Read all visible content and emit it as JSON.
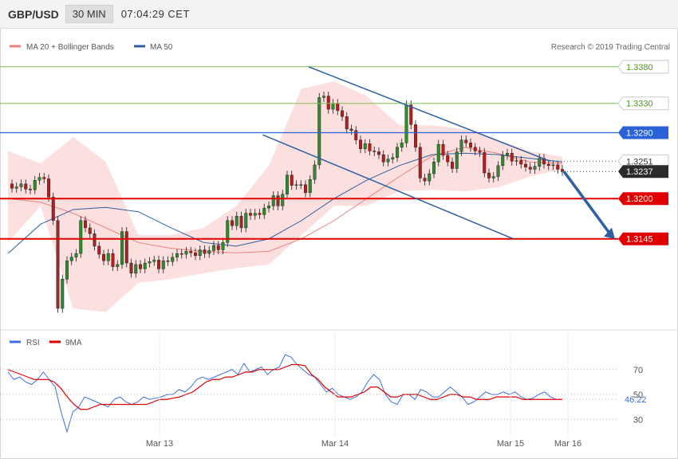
{
  "header": {
    "symbol": "GBP/USD",
    "timeframe": "30 MIN",
    "time": "07:04:29 CET"
  },
  "credit": "Research © 2019 Trading Central",
  "chart_data": [
    {
      "type": "candlestick",
      "legend": [
        {
          "name": "MA 20 + Bollinger Bands",
          "color": "#f08080"
        },
        {
          "name": "MA 50",
          "color": "#2f5fa0"
        }
      ],
      "ylim": [
        1.3025,
        1.3395
      ],
      "levels": [
        {
          "value": 1.338,
          "label": "1.3380",
          "color": "#7dc04b",
          "style": "green-line"
        },
        {
          "value": 1.333,
          "label": "1.3330",
          "color": "#7dc04b",
          "style": "green-line"
        },
        {
          "value": 1.329,
          "label": "1.3290",
          "color": "#2962d9",
          "style": "blue-line"
        },
        {
          "value": 1.3251,
          "label": "1.3251",
          "color": "#666666",
          "style": "dotted"
        },
        {
          "value": 1.3237,
          "label": "1.3237",
          "color": "#333333",
          "style": "current"
        },
        {
          "value": 1.32,
          "label": "1.3200",
          "color": "#e00000",
          "style": "red-line"
        },
        {
          "value": 1.3145,
          "label": "1.3145",
          "color": "#e00000",
          "style": "red-line"
        }
      ],
      "channel": {
        "upper": [
          [
            97,
            1.338
          ],
          [
            176,
            1.3251
          ]
        ],
        "lower": [
          [
            82,
            1.3287
          ],
          [
            164,
            1.3145
          ]
        ]
      },
      "forecast": [
        [
          177,
          1.3237
        ],
        [
          191,
          1.3145
        ]
      ],
      "candles": [
        [
          1.322,
          1.3214
        ],
        [
          1.3214,
          1.3216
        ],
        [
          1.3216,
          1.322
        ],
        [
          1.322,
          1.3213
        ],
        [
          1.3213,
          1.3212
        ],
        [
          1.3212,
          1.3225
        ],
        [
          1.3225,
          1.3229
        ],
        [
          1.3229,
          1.3227
        ],
        [
          1.3227,
          1.3202
        ],
        [
          1.3202,
          1.317
        ],
        [
          1.317,
          1.305
        ],
        [
          1.305,
          1.309
        ],
        [
          1.309,
          1.3115
        ],
        [
          1.3115,
          1.312
        ],
        [
          1.312,
          1.3125
        ],
        [
          1.3125,
          1.317
        ],
        [
          1.317,
          1.316
        ],
        [
          1.316,
          1.3152
        ],
        [
          1.3152,
          1.3135
        ],
        [
          1.3135,
          1.3124
        ],
        [
          1.3124,
          1.3115
        ],
        [
          1.3115,
          1.3125
        ],
        [
          1.3125,
          1.3107
        ],
        [
          1.3107,
          1.311
        ],
        [
          1.311,
          1.3155
        ],
        [
          1.3155,
          1.3112
        ],
        [
          1.3112,
          1.3098
        ],
        [
          1.3098,
          1.311
        ],
        [
          1.311,
          1.3104
        ],
        [
          1.3104,
          1.3112
        ],
        [
          1.3112,
          1.3114
        ],
        [
          1.3114,
          1.3116
        ],
        [
          1.3116,
          1.3104
        ],
        [
          1.3104,
          1.3115
        ],
        [
          1.3115,
          1.3114
        ],
        [
          1.3114,
          1.312
        ],
        [
          1.312,
          1.3125
        ],
        [
          1.3125,
          1.3124
        ],
        [
          1.3124,
          1.3128
        ],
        [
          1.3128,
          1.3126
        ],
        [
          1.3126,
          1.3122
        ],
        [
          1.3122,
          1.313
        ],
        [
          1.313,
          1.3125
        ],
        [
          1.3125,
          1.3129
        ],
        [
          1.3129,
          1.3136
        ],
        [
          1.3136,
          1.313
        ],
        [
          1.313,
          1.314
        ],
        [
          1.314,
          1.317
        ],
        [
          1.317,
          1.3163
        ],
        [
          1.3163,
          1.3176
        ],
        [
          1.3176,
          1.316
        ],
        [
          1.316,
          1.318
        ],
        [
          1.318,
          1.3177
        ],
        [
          1.3177,
          1.318
        ],
        [
          1.318,
          1.3178
        ],
        [
          1.3178,
          1.3187
        ],
        [
          1.3187,
          1.319
        ],
        [
          1.319,
          1.3204
        ],
        [
          1.3204,
          1.319
        ],
        [
          1.319,
          1.3206
        ],
        [
          1.3206,
          1.3232
        ],
        [
          1.3232,
          1.3218
        ],
        [
          1.3218,
          1.3219
        ],
        [
          1.3219,
          1.3219
        ],
        [
          1.3219,
          1.3208
        ],
        [
          1.3208,
          1.3226
        ],
        [
          1.3226,
          1.3246
        ],
        [
          1.3246,
          1.3338
        ],
        [
          1.3338,
          1.334
        ],
        [
          1.334,
          1.3322
        ],
        [
          1.3322,
          1.333
        ],
        [
          1.333,
          1.332
        ],
        [
          1.332,
          1.3312
        ],
        [
          1.3312,
          1.3295
        ],
        [
          1.3295,
          1.3293
        ],
        [
          1.3293,
          1.328
        ],
        [
          1.328,
          1.3268
        ],
        [
          1.3268,
          1.3275
        ],
        [
          1.3275,
          1.3265
        ],
        [
          1.3265,
          1.3264
        ],
        [
          1.3264,
          1.326
        ],
        [
          1.326,
          1.325
        ],
        [
          1.325,
          1.3254
        ],
        [
          1.3254,
          1.3256
        ],
        [
          1.3256,
          1.327
        ],
        [
          1.327,
          1.3276
        ],
        [
          1.3276,
          1.3328
        ],
        [
          1.3328,
          1.3301
        ],
        [
          1.3301,
          1.327
        ],
        [
          1.327,
          1.3228
        ],
        [
          1.3228,
          1.3224
        ],
        [
          1.3224,
          1.3234
        ],
        [
          1.3234,
          1.325
        ],
        [
          1.325,
          1.3274
        ],
        [
          1.3274,
          1.3259
        ],
        [
          1.3259,
          1.325
        ],
        [
          1.325,
          1.3241
        ],
        [
          1.3241,
          1.3264
        ],
        [
          1.3264,
          1.328
        ],
        [
          1.328,
          1.3276
        ],
        [
          1.3276,
          1.327
        ],
        [
          1.327,
          1.3265
        ],
        [
          1.3265,
          1.3263
        ],
        [
          1.3263,
          1.3235
        ],
        [
          1.3235,
          1.3228
        ],
        [
          1.3228,
          1.323
        ],
        [
          1.323,
          1.3245
        ],
        [
          1.3245,
          1.3259
        ],
        [
          1.3259,
          1.3262
        ],
        [
          1.3262,
          1.3251
        ],
        [
          1.3251,
          1.3252
        ],
        [
          1.3252,
          1.3247
        ],
        [
          1.3247,
          1.3243
        ],
        [
          1.3243,
          1.324
        ],
        [
          1.324,
          1.3244
        ],
        [
          1.3244,
          1.3255
        ],
        [
          1.3255,
          1.3247
        ],
        [
          1.3247,
          1.3245
        ],
        [
          1.3245,
          1.3246
        ],
        [
          1.3246,
          1.324
        ],
        [
          1.324,
          1.3237
        ]
      ],
      "ma20": [
        1.32,
        1.3195,
        1.318,
        1.316,
        1.314,
        1.3132,
        1.3128,
        1.3126,
        1.3128,
        1.3145,
        1.317,
        1.32,
        1.323,
        1.3258,
        1.327,
        1.3262,
        1.325,
        1.3248
      ],
      "ma50": [
        1.3125,
        1.3165,
        1.3185,
        1.3188,
        1.3182,
        1.316,
        1.314,
        1.3135,
        1.3145,
        1.317,
        1.32,
        1.3225,
        1.3245,
        1.326,
        1.3262,
        1.326,
        1.3255,
        1.325
      ],
      "bb_upper": [
        1.3265,
        1.3248,
        1.3284,
        1.325,
        1.315,
        1.315,
        1.316,
        1.319,
        1.3245,
        1.335,
        1.336,
        1.334,
        1.33,
        1.33,
        1.3295,
        1.328,
        1.3265,
        1.3257
      ],
      "bb_lower": [
        1.314,
        1.319,
        1.305,
        1.3045,
        1.3085,
        1.309,
        1.3098,
        1.3105,
        1.311,
        1.315,
        1.319,
        1.319,
        1.321,
        1.3212,
        1.321,
        1.3215,
        1.323,
        1.324
      ],
      "x_ticks": [
        "Mar 13",
        "Mar 14",
        "Mar 15",
        "Mar 16"
      ]
    },
    {
      "type": "line",
      "legend": [
        {
          "name": "RSI",
          "color": "#3f6fe0"
        },
        {
          "name": "9MA",
          "color": "#e00000"
        }
      ],
      "ylim": [
        18,
        82
      ],
      "y_ticks": [
        70,
        50,
        30
      ],
      "current": {
        "value": 46.22,
        "label": "46.22"
      },
      "rsi": [
        68,
        62,
        64,
        60,
        58,
        62,
        68,
        62,
        56,
        36,
        20,
        36,
        40,
        48,
        46,
        44,
        42,
        40,
        46,
        48,
        44,
        42,
        44,
        48,
        46,
        47,
        48,
        50,
        50,
        54,
        52,
        56,
        62,
        64,
        62,
        64,
        66,
        68,
        70,
        66,
        75,
        68,
        70,
        72,
        66,
        70,
        72,
        82,
        80,
        74,
        70,
        66,
        64,
        58,
        52,
        55,
        50,
        48,
        46,
        48,
        52,
        60,
        66,
        62,
        50,
        44,
        42,
        50,
        50,
        46,
        54,
        52,
        48,
        48,
        52,
        56,
        52,
        48,
        42,
        44,
        48,
        52,
        50,
        50,
        52,
        50,
        52,
        48,
        46,
        47,
        50,
        52,
        48,
        46,
        46
      ],
      "ma9": [
        70,
        68,
        66,
        64,
        62,
        62,
        62,
        60,
        55,
        48,
        42,
        38,
        38,
        40,
        42,
        42,
        42,
        42,
        42,
        42,
        42,
        42,
        44,
        46,
        46,
        47,
        48,
        50,
        52,
        56,
        60,
        62,
        62,
        64,
        64,
        66,
        68,
        68,
        70,
        70,
        70,
        70,
        72,
        74,
        74,
        73,
        66,
        62,
        56,
        52,
        48,
        48,
        48,
        50,
        52,
        56,
        56,
        52,
        48,
        48,
        50,
        50,
        50,
        48,
        46,
        46,
        48,
        50,
        50,
        48,
        48,
        46,
        46,
        46,
        48,
        48,
        48,
        48,
        46,
        46,
        46,
        46,
        46,
        46,
        46
      ]
    }
  ]
}
